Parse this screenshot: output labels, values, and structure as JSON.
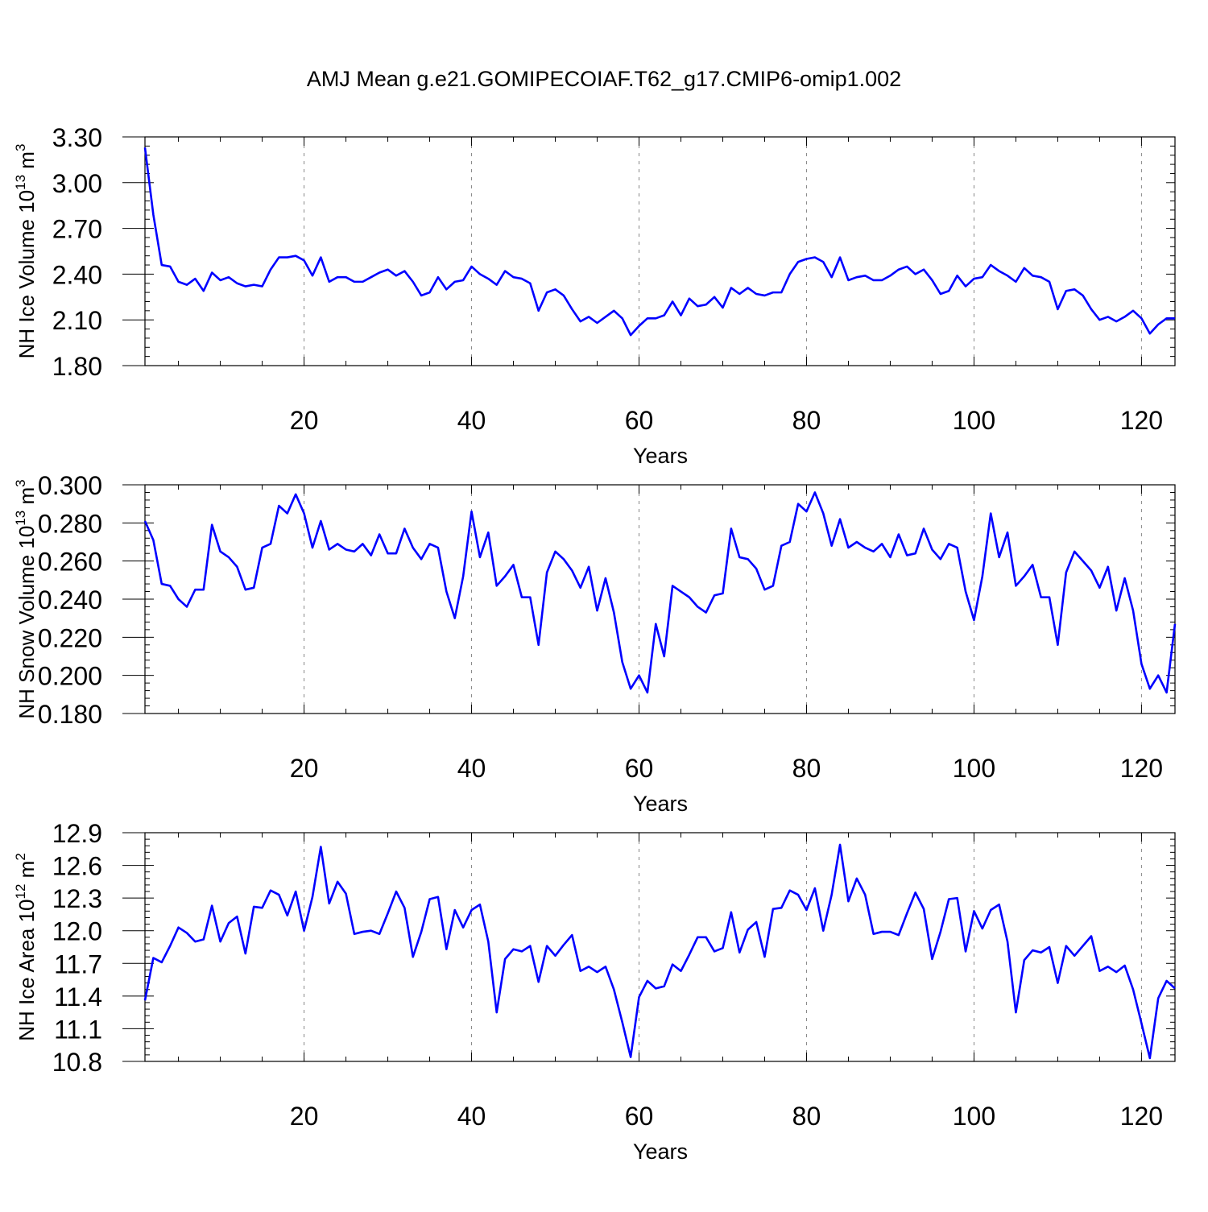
{
  "title": "AMJ Mean g.e21.GOMIPECOIAF.T62_g17.CMIP6-omip1.002",
  "line_color": "#0000ff",
  "grid_color": "#888888",
  "chart_data": [
    {
      "type": "line",
      "title": "AMJ Mean g.e21.GOMIPECOIAF.T62_g17.CMIP6-omip1.002",
      "xlabel": "Years",
      "ylabel": {
        "base": "NH Ice Volume 10",
        "exp": "13",
        "unit": " m",
        "unit_exp": "3"
      },
      "xlim": [
        1,
        124
      ],
      "ylim": [
        1.8,
        3.3
      ],
      "xticks": [
        20,
        40,
        60,
        80,
        100,
        120
      ],
      "yticks": [
        "1.80",
        "2.10",
        "2.40",
        "2.70",
        "3.00",
        "3.30"
      ],
      "grid": "vertical dashed at x ticks",
      "series": [
        {
          "values": [
            3.23,
            2.79,
            2.46,
            2.45,
            2.35,
            2.33,
            2.37,
            2.29,
            2.41,
            2.36,
            2.38,
            2.34,
            2.32,
            2.33,
            2.32,
            2.43,
            2.51,
            2.51,
            2.52,
            2.49,
            2.39,
            2.51,
            2.35,
            2.38,
            2.38,
            2.35,
            2.35,
            2.38,
            2.41,
            2.43,
            2.39,
            2.42,
            2.35,
            2.26,
            2.28,
            2.38,
            2.3,
            2.35,
            2.36,
            2.45,
            2.4,
            2.37,
            2.33,
            2.42,
            2.38,
            2.37,
            2.34,
            2.16,
            2.28,
            2.3,
            2.26,
            2.17,
            2.09,
            2.12,
            2.08,
            2.12,
            2.16,
            2.11,
            2.0,
            2.06,
            2.11,
            2.11,
            2.13,
            2.22,
            2.13,
            2.24,
            2.19,
            2.2,
            2.25,
            2.18,
            2.31,
            2.27,
            2.31,
            2.27,
            2.26,
            2.28,
            2.28,
            2.4,
            2.48,
            2.5,
            2.51,
            2.48,
            2.38,
            2.51,
            2.36,
            2.38,
            2.39,
            2.36,
            2.36,
            2.39,
            2.43,
            2.45,
            2.4,
            2.43,
            2.36,
            2.27,
            2.29,
            2.39,
            2.32,
            2.37,
            2.38,
            2.46,
            2.42,
            2.39,
            2.35,
            2.44,
            2.39,
            2.38,
            2.35,
            2.17,
            2.29,
            2.3,
            2.26,
            2.17,
            2.1,
            2.12,
            2.09,
            2.12,
            2.16,
            2.11,
            2.01,
            2.07,
            2.11,
            2.11
          ]
        }
      ]
    },
    {
      "type": "line",
      "xlabel": "Years",
      "ylabel": {
        "base": "NH Snow Volume 10",
        "exp": "13",
        "unit": " m",
        "unit_exp": "3"
      },
      "xlim": [
        1,
        124
      ],
      "ylim": [
        0.18,
        0.3
      ],
      "xticks": [
        20,
        40,
        60,
        80,
        100,
        120
      ],
      "yticks": [
        "0.180",
        "0.200",
        "0.220",
        "0.240",
        "0.260",
        "0.280",
        "0.300"
      ],
      "grid": "vertical dashed at x ticks",
      "series": [
        {
          "values": [
            0.281,
            0.271,
            0.248,
            0.247,
            0.24,
            0.236,
            0.245,
            0.245,
            0.279,
            0.265,
            0.262,
            0.257,
            0.245,
            0.246,
            0.267,
            0.269,
            0.289,
            0.285,
            0.295,
            0.285,
            0.267,
            0.281,
            0.266,
            0.269,
            0.266,
            0.265,
            0.269,
            0.263,
            0.274,
            0.264,
            0.264,
            0.277,
            0.267,
            0.261,
            0.269,
            0.267,
            0.244,
            0.23,
            0.252,
            0.286,
            0.262,
            0.275,
            0.247,
            0.252,
            0.258,
            0.241,
            0.241,
            0.216,
            0.254,
            0.265,
            0.261,
            0.255,
            0.246,
            0.257,
            0.234,
            0.251,
            0.233,
            0.207,
            0.193,
            0.2,
            0.191,
            0.227,
            0.21,
            0.247,
            0.244,
            0.241,
            0.236,
            0.233,
            0.242,
            0.243,
            0.277,
            0.262,
            0.261,
            0.256,
            0.245,
            0.247,
            0.268,
            0.27,
            0.29,
            0.286,
            0.296,
            0.285,
            0.268,
            0.282,
            0.267,
            0.27,
            0.267,
            0.265,
            0.269,
            0.262,
            0.274,
            0.263,
            0.264,
            0.277,
            0.266,
            0.261,
            0.269,
            0.267,
            0.244,
            0.229,
            0.252,
            0.285,
            0.262,
            0.275,
            0.247,
            0.252,
            0.258,
            0.241,
            0.241,
            0.216,
            0.254,
            0.265,
            0.26,
            0.255,
            0.246,
            0.257,
            0.234,
            0.251,
            0.234,
            0.206,
            0.193,
            0.2,
            0.191,
            0.227
          ]
        }
      ]
    },
    {
      "type": "line",
      "xlabel": "Years",
      "ylabel": {
        "base": "NH Ice Area 10",
        "exp": "12",
        "unit": " m",
        "unit_exp": "2"
      },
      "xlim": [
        1,
        124
      ],
      "ylim": [
        10.8,
        12.9
      ],
      "xticks": [
        20,
        40,
        60,
        80,
        100,
        120
      ],
      "yticks": [
        "10.8",
        "11.1",
        "11.4",
        "11.7",
        "12.0",
        "12.3",
        "12.6",
        "12.9"
      ],
      "grid": "vertical dashed at x ticks",
      "series": [
        {
          "values": [
            11.36,
            11.75,
            11.71,
            11.86,
            12.03,
            11.98,
            11.9,
            11.92,
            12.23,
            11.9,
            12.07,
            12.13,
            11.79,
            12.22,
            12.21,
            12.37,
            12.33,
            12.14,
            12.36,
            12.0,
            12.31,
            12.77,
            12.25,
            12.45,
            12.34,
            11.97,
            11.99,
            12.0,
            11.97,
            12.16,
            12.36,
            12.21,
            11.76,
            11.99,
            12.29,
            12.31,
            11.83,
            12.19,
            12.03,
            12.19,
            12.24,
            11.9,
            11.25,
            11.74,
            11.83,
            11.81,
            11.86,
            11.53,
            11.86,
            11.77,
            11.87,
            11.96,
            11.63,
            11.67,
            11.62,
            11.67,
            11.46,
            11.16,
            10.84,
            11.39,
            11.54,
            11.47,
            11.49,
            11.69,
            11.63,
            11.78,
            11.94,
            11.94,
            11.81,
            11.84,
            12.17,
            11.8,
            12.01,
            12.08,
            11.76,
            12.2,
            12.21,
            12.37,
            12.33,
            12.19,
            12.39,
            12.0,
            12.33,
            12.79,
            12.27,
            12.48,
            12.33,
            11.97,
            11.99,
            11.99,
            11.96,
            12.16,
            12.35,
            12.2,
            11.74,
            11.99,
            12.29,
            12.3,
            11.81,
            12.18,
            12.02,
            12.19,
            12.24,
            11.9,
            11.25,
            11.73,
            11.82,
            11.8,
            11.85,
            11.52,
            11.86,
            11.77,
            11.86,
            11.95,
            11.63,
            11.67,
            11.62,
            11.68,
            11.46,
            11.15,
            10.83,
            11.38,
            11.54,
            11.47
          ]
        }
      ]
    }
  ]
}
